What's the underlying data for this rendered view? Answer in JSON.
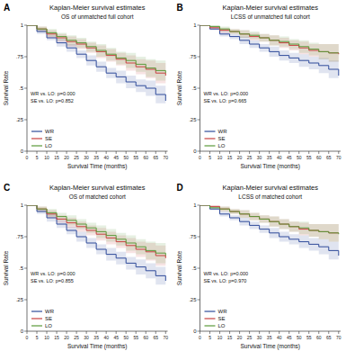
{
  "chart_data": [
    {
      "type": "line",
      "panel_label": "A",
      "title": "Kaplan-Meier survival estimates",
      "subtitle": "OS of unmatched full cohort",
      "x_label": "Survival Time (months)",
      "y_label": "Survival Rate",
      "annotations": [
        "WR vs. LO: p=0.000",
        "SE vs. LO: p=0.852"
      ],
      "line_style": "step",
      "legend": "lower left",
      "grid": false,
      "xlim": [
        0,
        71
      ],
      "ylim": [
        0,
        1
      ],
      "xticks": [
        0,
        5,
        10,
        15,
        20,
        25,
        30,
        35,
        40,
        45,
        50,
        55,
        60,
        65,
        70
      ],
      "yticks": [
        0,
        {
          "value": 0.25,
          "label": ".25"
        },
        {
          "value": 0.5,
          "label": ".5"
        },
        {
          "value": 0.75,
          "label": ".75"
        },
        1
      ],
      "x": [
        0,
        5,
        10,
        15,
        20,
        25,
        30,
        35,
        40,
        45,
        50,
        55,
        60,
        65,
        70
      ],
      "series": [
        {
          "name": "WR",
          "color": "#2f4b9a",
          "values": [
            1,
            0.95,
            0.9,
            0.86,
            0.82,
            0.77,
            0.72,
            0.67,
            0.62,
            0.59,
            0.55,
            0.52,
            0.5,
            0.45,
            0.4
          ],
          "ci": [
            0,
            0.02,
            0.02,
            0.03,
            0.03,
            0.03,
            0.04,
            0.04,
            0.04,
            0.05,
            0.05,
            0.05,
            0.06,
            0.07,
            0.09
          ]
        },
        {
          "name": "SE",
          "color": "#c94040",
          "values": [
            1,
            0.97,
            0.93,
            0.9,
            0.87,
            0.85,
            0.82,
            0.79,
            0.76,
            0.73,
            0.7,
            0.67,
            0.65,
            0.62,
            0.6
          ],
          "ci": [
            0,
            0.02,
            0.03,
            0.03,
            0.04,
            0.04,
            0.04,
            0.05,
            0.05,
            0.05,
            0.06,
            0.06,
            0.07,
            0.08,
            0.1
          ]
        },
        {
          "name": "LO",
          "color": "#5a9a3a",
          "values": [
            1,
            0.97,
            0.94,
            0.91,
            0.88,
            0.86,
            0.83,
            0.8,
            0.77,
            0.74,
            0.72,
            0.69,
            0.66,
            0.64,
            0.62
          ],
          "ci": [
            0,
            0.02,
            0.03,
            0.03,
            0.04,
            0.04,
            0.04,
            0.05,
            0.05,
            0.05,
            0.06,
            0.06,
            0.07,
            0.08,
            0.1
          ]
        }
      ]
    },
    {
      "type": "line",
      "panel_label": "B",
      "title": "Kaplan-Meier survival estimates",
      "subtitle": "LCSS of unmatched full cohort",
      "x_label": "Survival Time (months)",
      "y_label": "Survival Rate",
      "annotations": [
        "WR vs. LO: p=0.000",
        "SE vs. LO: p=0.665"
      ],
      "line_style": "step",
      "legend": "lower left",
      "grid": false,
      "xlim": [
        0,
        71
      ],
      "ylim": [
        0,
        1
      ],
      "xticks": [
        0,
        5,
        10,
        15,
        20,
        25,
        30,
        35,
        40,
        45,
        50,
        55,
        60,
        65,
        70
      ],
      "yticks": [
        0,
        {
          "value": 0.25,
          "label": ".25"
        },
        {
          "value": 0.5,
          "label": ".5"
        },
        {
          "value": 0.75,
          "label": ".75"
        },
        1
      ],
      "x": [
        0,
        5,
        10,
        15,
        20,
        25,
        30,
        35,
        40,
        45,
        50,
        55,
        60,
        65,
        70
      ],
      "series": [
        {
          "name": "WR",
          "color": "#2f4b9a",
          "values": [
            1,
            0.97,
            0.93,
            0.91,
            0.88,
            0.85,
            0.82,
            0.79,
            0.76,
            0.74,
            0.72,
            0.7,
            0.68,
            0.65,
            0.6
          ],
          "ci": [
            0,
            0.01,
            0.02,
            0.02,
            0.03,
            0.03,
            0.03,
            0.04,
            0.04,
            0.04,
            0.05,
            0.05,
            0.06,
            0.07,
            0.12
          ]
        },
        {
          "name": "SE",
          "color": "#c94040",
          "values": [
            1,
            0.98,
            0.96,
            0.95,
            0.93,
            0.91,
            0.9,
            0.88,
            0.86,
            0.84,
            0.82,
            0.8,
            0.79,
            0.78,
            0.77
          ],
          "ci": [
            0,
            0.01,
            0.02,
            0.02,
            0.03,
            0.03,
            0.03,
            0.04,
            0.04,
            0.04,
            0.05,
            0.05,
            0.06,
            0.07,
            0.08
          ]
        },
        {
          "name": "LO",
          "color": "#5a9a3a",
          "values": [
            1,
            0.99,
            0.97,
            0.95,
            0.93,
            0.92,
            0.9,
            0.88,
            0.87,
            0.85,
            0.83,
            0.81,
            0.79,
            0.78,
            0.78
          ],
          "ci": [
            0,
            0.01,
            0.02,
            0.02,
            0.03,
            0.03,
            0.03,
            0.04,
            0.04,
            0.04,
            0.05,
            0.05,
            0.06,
            0.07,
            0.08
          ]
        }
      ]
    },
    {
      "type": "line",
      "panel_label": "C",
      "title": "Kaplan-Meier survival estimates",
      "subtitle": "OS of matched cohort",
      "x_label": "Survival Time (months)",
      "y_label": "Survival Rate",
      "annotations": [
        "WR vs. LO: p=0.000",
        "SE vs. LO: p=0.855"
      ],
      "line_style": "step",
      "legend": "lower left",
      "grid": false,
      "xlim": [
        0,
        71
      ],
      "ylim": [
        0,
        1
      ],
      "xticks": [
        0,
        5,
        10,
        15,
        20,
        25,
        30,
        35,
        40,
        45,
        50,
        55,
        60,
        65,
        70
      ],
      "yticks": [
        0,
        {
          "value": 0.25,
          "label": ".25"
        },
        {
          "value": 0.5,
          "label": ".5"
        },
        {
          "value": 0.75,
          "label": ".75"
        },
        1
      ],
      "x": [
        0,
        5,
        10,
        15,
        20,
        25,
        30,
        35,
        40,
        45,
        50,
        55,
        60,
        65,
        70
      ],
      "series": [
        {
          "name": "WR",
          "color": "#2f4b9a",
          "values": [
            1,
            0.95,
            0.9,
            0.85,
            0.8,
            0.75,
            0.7,
            0.65,
            0.61,
            0.58,
            0.54,
            0.51,
            0.48,
            0.44,
            0.4
          ],
          "ci": [
            0,
            0.02,
            0.03,
            0.03,
            0.03,
            0.04,
            0.04,
            0.04,
            0.05,
            0.05,
            0.05,
            0.06,
            0.06,
            0.07,
            0.09
          ]
        },
        {
          "name": "SE",
          "color": "#c94040",
          "values": [
            1,
            0.97,
            0.93,
            0.89,
            0.86,
            0.83,
            0.8,
            0.77,
            0.74,
            0.71,
            0.68,
            0.65,
            0.63,
            0.6,
            0.58
          ],
          "ci": [
            0,
            0.02,
            0.03,
            0.03,
            0.04,
            0.04,
            0.04,
            0.05,
            0.05,
            0.05,
            0.06,
            0.06,
            0.07,
            0.08,
            0.1
          ]
        },
        {
          "name": "LO",
          "color": "#5a9a3a",
          "values": [
            1,
            0.97,
            0.94,
            0.91,
            0.88,
            0.85,
            0.82,
            0.79,
            0.76,
            0.73,
            0.7,
            0.67,
            0.64,
            0.62,
            0.6
          ],
          "ci": [
            0,
            0.02,
            0.03,
            0.03,
            0.04,
            0.04,
            0.04,
            0.05,
            0.05,
            0.05,
            0.06,
            0.06,
            0.07,
            0.08,
            0.1
          ]
        }
      ]
    },
    {
      "type": "line",
      "panel_label": "D",
      "title": "Kaplan-Meier survival estimates",
      "subtitle": "LCSS of matched cohort",
      "x_label": "Survival Time (months)",
      "y_label": "Survival Rate",
      "annotations": [
        "WR vs. LO: p=0.000",
        "SE vs. LO: p=0.970"
      ],
      "line_style": "step",
      "legend": "lower left",
      "grid": false,
      "xlim": [
        0,
        71
      ],
      "ylim": [
        0,
        1
      ],
      "xticks": [
        0,
        5,
        10,
        15,
        20,
        25,
        30,
        35,
        40,
        45,
        50,
        55,
        60,
        65,
        70
      ],
      "yticks": [
        0,
        {
          "value": 0.25,
          "label": ".25"
        },
        {
          "value": 0.5,
          "label": ".5"
        },
        {
          "value": 0.75,
          "label": ".75"
        },
        1
      ],
      "x": [
        0,
        5,
        10,
        15,
        20,
        25,
        30,
        35,
        40,
        45,
        50,
        55,
        60,
        65,
        70
      ],
      "series": [
        {
          "name": "WR",
          "color": "#2f4b9a",
          "values": [
            1,
            0.97,
            0.93,
            0.9,
            0.87,
            0.84,
            0.81,
            0.78,
            0.75,
            0.73,
            0.71,
            0.69,
            0.67,
            0.64,
            0.6
          ],
          "ci": [
            0,
            0.01,
            0.02,
            0.02,
            0.03,
            0.03,
            0.03,
            0.04,
            0.04,
            0.04,
            0.05,
            0.05,
            0.06,
            0.07,
            0.12
          ]
        },
        {
          "name": "SE",
          "color": "#c94040",
          "values": [
            1,
            0.99,
            0.97,
            0.95,
            0.93,
            0.91,
            0.89,
            0.87,
            0.85,
            0.83,
            0.81,
            0.8,
            0.79,
            0.78,
            0.78
          ],
          "ci": [
            0,
            0.01,
            0.02,
            0.02,
            0.03,
            0.03,
            0.03,
            0.04,
            0.04,
            0.04,
            0.05,
            0.05,
            0.06,
            0.07,
            0.08
          ]
        },
        {
          "name": "LO",
          "color": "#5a9a3a",
          "values": [
            1,
            0.98,
            0.97,
            0.95,
            0.93,
            0.91,
            0.89,
            0.87,
            0.85,
            0.83,
            0.82,
            0.8,
            0.79,
            0.78,
            0.77
          ],
          "ci": [
            0,
            0.01,
            0.02,
            0.02,
            0.03,
            0.03,
            0.03,
            0.04,
            0.04,
            0.04,
            0.05,
            0.05,
            0.06,
            0.07,
            0.08
          ]
        }
      ]
    }
  ]
}
